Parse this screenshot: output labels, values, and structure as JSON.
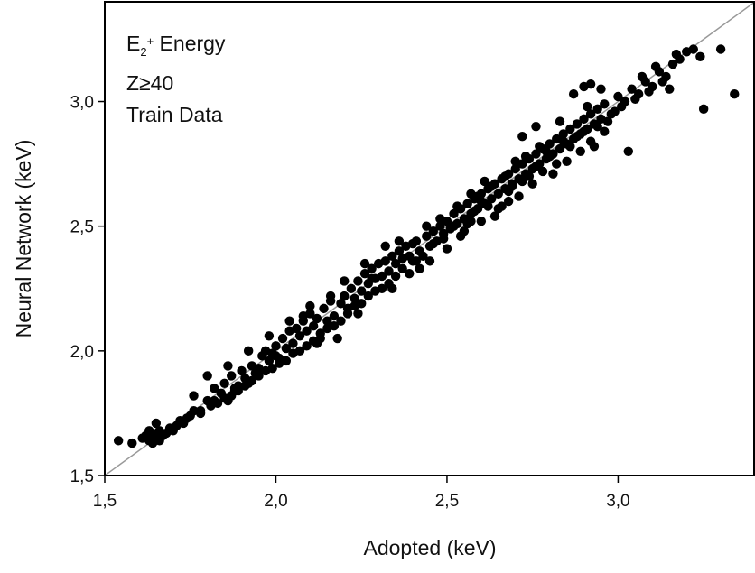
{
  "chart_data": {
    "type": "scatter",
    "title": "",
    "xlabel": "Adopted (keV)",
    "ylabel": "Neural Network (keV)",
    "xlim": [
      1.5,
      3.4
    ],
    "ylim": [
      1.5,
      3.4
    ],
    "x_ticks": [
      1.5,
      2.0,
      2.5,
      3.0
    ],
    "y_ticks": [
      1.5,
      2.0,
      2.5,
      3.0
    ],
    "x_tick_labels": [
      "1,5",
      "2,0",
      "2,5",
      "3,0"
    ],
    "y_tick_labels": [
      "1,5",
      "2,0",
      "2,5",
      "3,0"
    ],
    "grid": false,
    "reference_line": "y = x",
    "annotations": {
      "line1_main": "E",
      "line1_sub": "2",
      "line1_sup": "+",
      "line1_rest": " Energy",
      "line2": "Z≥40",
      "line3": "Train Data"
    },
    "colors": {
      "points": "#000000",
      "reference_line": "#999999",
      "frame": "#000000"
    },
    "points": [
      [
        1.54,
        1.64
      ],
      [
        1.58,
        1.63
      ],
      [
        1.61,
        1.65
      ],
      [
        1.62,
        1.66
      ],
      [
        1.63,
        1.64
      ],
      [
        1.64,
        1.67
      ],
      [
        1.65,
        1.65
      ],
      [
        1.66,
        1.68
      ],
      [
        1.67,
        1.66
      ],
      [
        1.68,
        1.67
      ],
      [
        1.69,
        1.69
      ],
      [
        1.65,
        1.71
      ],
      [
        1.63,
        1.68
      ],
      [
        1.72,
        1.72
      ],
      [
        1.74,
        1.73
      ],
      [
        1.76,
        1.82
      ],
      [
        1.78,
        1.76
      ],
      [
        1.8,
        1.8
      ],
      [
        1.82,
        1.85
      ],
      [
        1.84,
        1.83
      ],
      [
        1.85,
        1.87
      ],
      [
        1.86,
        1.8
      ],
      [
        1.87,
        1.9
      ],
      [
        1.88,
        1.84
      ],
      [
        1.89,
        1.86
      ],
      [
        1.9,
        1.92
      ],
      [
        1.91,
        1.89
      ],
      [
        1.92,
        1.87
      ],
      [
        1.93,
        1.94
      ],
      [
        1.95,
        1.93
      ],
      [
        1.96,
        1.98
      ],
      [
        1.97,
        2.0
      ],
      [
        1.98,
        1.96
      ],
      [
        1.99,
        1.99
      ],
      [
        2.0,
        2.02
      ],
      [
        2.01,
        1.97
      ],
      [
        2.02,
        2.05
      ],
      [
        2.03,
        2.01
      ],
      [
        2.04,
        2.08
      ],
      [
        2.05,
        2.03
      ],
      [
        2.06,
        2.09
      ],
      [
        2.07,
        2.06
      ],
      [
        2.08,
        2.12
      ],
      [
        2.09,
        2.08
      ],
      [
        2.1,
        2.15
      ],
      [
        2.11,
        2.1
      ],
      [
        2.12,
        2.13
      ],
      [
        2.13,
        2.07
      ],
      [
        2.14,
        2.17
      ],
      [
        2.15,
        2.12
      ],
      [
        2.16,
        2.2
      ],
      [
        2.17,
        2.14
      ],
      [
        2.18,
        2.05
      ],
      [
        2.19,
        2.19
      ],
      [
        2.2,
        2.22
      ],
      [
        2.21,
        2.17
      ],
      [
        2.22,
        2.25
      ],
      [
        2.23,
        2.21
      ],
      [
        2.24,
        2.28
      ],
      [
        2.25,
        2.24
      ],
      [
        2.26,
        2.31
      ],
      [
        2.27,
        2.27
      ],
      [
        2.28,
        2.33
      ],
      [
        2.29,
        2.29
      ],
      [
        2.3,
        2.35
      ],
      [
        2.31,
        2.3
      ],
      [
        2.32,
        2.36
      ],
      [
        2.33,
        2.32
      ],
      [
        2.34,
        2.38
      ],
      [
        2.35,
        2.35
      ],
      [
        2.36,
        2.4
      ],
      [
        2.37,
        2.37
      ],
      [
        2.38,
        2.42
      ],
      [
        2.39,
        2.38
      ],
      [
        2.4,
        2.36
      ],
      [
        2.41,
        2.44
      ],
      [
        2.42,
        2.4
      ],
      [
        2.44,
        2.46
      ],
      [
        2.45,
        2.42
      ],
      [
        2.46,
        2.48
      ],
      [
        2.47,
        2.44
      ],
      [
        2.48,
        2.5
      ],
      [
        2.49,
        2.47
      ],
      [
        2.5,
        2.52
      ],
      [
        2.51,
        2.49
      ],
      [
        2.52,
        2.55
      ],
      [
        2.53,
        2.51
      ],
      [
        2.54,
        2.57
      ],
      [
        2.55,
        2.53
      ],
      [
        2.56,
        2.59
      ],
      [
        2.57,
        2.55
      ],
      [
        2.58,
        2.61
      ],
      [
        2.59,
        2.57
      ],
      [
        2.6,
        2.63
      ],
      [
        2.61,
        2.59
      ],
      [
        2.62,
        2.65
      ],
      [
        2.63,
        2.61
      ],
      [
        2.64,
        2.67
      ],
      [
        2.65,
        2.63
      ],
      [
        2.66,
        2.69
      ],
      [
        2.67,
        2.65
      ],
      [
        2.68,
        2.71
      ],
      [
        2.69,
        2.67
      ],
      [
        2.7,
        2.73
      ],
      [
        2.71,
        2.69
      ],
      [
        2.72,
        2.75
      ],
      [
        2.73,
        2.71
      ],
      [
        2.74,
        2.77
      ],
      [
        2.75,
        2.73
      ],
      [
        2.76,
        2.79
      ],
      [
        2.77,
        2.75
      ],
      [
        2.78,
        2.81
      ],
      [
        2.79,
        2.77
      ],
      [
        2.8,
        2.83
      ],
      [
        2.81,
        2.79
      ],
      [
        2.82,
        2.85
      ],
      [
        2.83,
        2.81
      ],
      [
        2.84,
        2.87
      ],
      [
        2.85,
        2.83
      ],
      [
        2.86,
        2.89
      ],
      [
        2.87,
        2.85
      ],
      [
        2.88,
        2.91
      ],
      [
        2.89,
        2.87
      ],
      [
        2.9,
        2.93
      ],
      [
        2.91,
        2.89
      ],
      [
        2.92,
        2.95
      ],
      [
        2.93,
        2.91
      ],
      [
        2.94,
        2.97
      ],
      [
        2.95,
        2.93
      ],
      [
        2.96,
        2.99
      ],
      [
        2.98,
        2.95
      ],
      [
        3.0,
        3.02
      ],
      [
        3.02,
        3.0
      ],
      [
        3.04,
        3.05
      ],
      [
        3.06,
        3.03
      ],
      [
        3.08,
        3.08
      ],
      [
        3.1,
        3.06
      ],
      [
        3.12,
        3.12
      ],
      [
        3.14,
        3.1
      ],
      [
        3.16,
        3.15
      ],
      [
        3.18,
        3.17
      ],
      [
        3.2,
        3.2
      ],
      [
        3.22,
        3.21
      ],
      [
        3.24,
        3.18
      ],
      [
        3.3,
        3.21
      ],
      [
        3.25,
        2.97
      ],
      [
        3.34,
        3.03
      ],
      [
        3.03,
        2.8
      ],
      [
        2.92,
        3.07
      ],
      [
        2.9,
        3.06
      ],
      [
        2.95,
        3.05
      ],
      [
        2.87,
        3.03
      ],
      [
        2.93,
        2.82
      ],
      [
        2.82,
        2.75
      ],
      [
        2.8,
        2.78
      ],
      [
        2.62,
        2.58
      ],
      [
        2.64,
        2.54
      ],
      [
        2.6,
        2.6
      ],
      [
        2.57,
        2.52
      ],
      [
        2.55,
        2.48
      ],
      [
        2.59,
        2.62
      ],
      [
        2.63,
        2.66
      ],
      [
        2.68,
        2.64
      ],
      [
        2.72,
        2.68
      ],
      [
        2.74,
        2.7
      ],
      [
        2.76,
        2.74
      ],
      [
        2.78,
        2.72
      ],
      [
        2.71,
        2.62
      ],
      [
        2.69,
        2.66
      ],
      [
        2.66,
        2.58
      ],
      [
        2.67,
        2.7
      ],
      [
        2.7,
        2.76
      ],
      [
        2.73,
        2.78
      ],
      [
        2.77,
        2.82
      ],
      [
        2.79,
        2.8
      ],
      [
        2.84,
        2.84
      ],
      [
        2.86,
        2.82
      ],
      [
        2.88,
        2.86
      ],
      [
        2.9,
        2.88
      ],
      [
        2.94,
        2.9
      ],
      [
        2.97,
        2.92
      ],
      [
        2.99,
        2.96
      ],
      [
        3.01,
        2.98
      ],
      [
        3.05,
        3.01
      ],
      [
        3.09,
        3.04
      ],
      [
        3.13,
        3.08
      ],
      [
        3.15,
        3.05
      ],
      [
        2.56,
        2.51
      ],
      [
        2.58,
        2.56
      ],
      [
        2.52,
        2.5
      ],
      [
        2.49,
        2.45
      ],
      [
        2.46,
        2.43
      ],
      [
        2.43,
        2.38
      ],
      [
        2.41,
        2.36
      ],
      [
        2.37,
        2.33
      ],
      [
        2.35,
        2.3
      ],
      [
        2.33,
        2.27
      ],
      [
        2.31,
        2.25
      ],
      [
        2.29,
        2.24
      ],
      [
        2.27,
        2.22
      ],
      [
        2.25,
        2.19
      ],
      [
        2.23,
        2.18
      ],
      [
        2.21,
        2.15
      ],
      [
        2.19,
        2.12
      ],
      [
        2.17,
        2.1
      ],
      [
        2.15,
        2.09
      ],
      [
        2.13,
        2.05
      ],
      [
        2.11,
        2.04
      ],
      [
        2.09,
        2.02
      ],
      [
        2.07,
        2.0
      ],
      [
        2.05,
        1.99
      ],
      [
        2.03,
        1.96
      ],
      [
        2.01,
        1.95
      ],
      [
        1.99,
        1.93
      ],
      [
        1.97,
        1.92
      ],
      [
        1.95,
        1.9
      ],
      [
        1.93,
        1.88
      ],
      [
        1.91,
        1.86
      ],
      [
        1.89,
        1.84
      ],
      [
        1.87,
        1.82
      ],
      [
        1.85,
        1.81
      ],
      [
        1.83,
        1.79
      ],
      [
        1.81,
        1.78
      ],
      [
        1.78,
        1.75
      ],
      [
        1.75,
        1.74
      ],
      [
        1.73,
        1.71
      ],
      [
        1.71,
        1.7
      ],
      [
        1.7,
        1.68
      ],
      [
        1.66,
        1.64
      ],
      [
        1.64,
        1.63
      ],
      [
        2.2,
        2.28
      ],
      [
        2.26,
        2.35
      ],
      [
        2.32,
        2.42
      ],
      [
        2.36,
        2.44
      ],
      [
        2.4,
        2.43
      ],
      [
        2.28,
        2.29
      ],
      [
        2.44,
        2.5
      ],
      [
        2.48,
        2.53
      ],
      [
        2.1,
        2.18
      ],
      [
        2.04,
        2.12
      ],
      [
        1.98,
        2.06
      ],
      [
        1.92,
        2.0
      ],
      [
        1.86,
        1.94
      ],
      [
        1.8,
        1.9
      ],
      [
        2.16,
        2.22
      ],
      [
        2.34,
        2.25
      ],
      [
        2.42,
        2.33
      ],
      [
        2.5,
        2.41
      ],
      [
        2.54,
        2.46
      ],
      [
        2.6,
        2.52
      ],
      [
        2.65,
        2.57
      ],
      [
        2.68,
        2.6
      ],
      [
        2.75,
        2.67
      ],
      [
        2.81,
        2.71
      ],
      [
        2.85,
        2.76
      ],
      [
        2.89,
        2.8
      ],
      [
        2.92,
        2.84
      ],
      [
        2.96,
        2.88
      ],
      [
        3.07,
        3.1
      ],
      [
        3.11,
        3.14
      ],
      [
        3.17,
        3.19
      ],
      [
        2.72,
        2.86
      ],
      [
        2.76,
        2.9
      ],
      [
        2.83,
        2.92
      ],
      [
        2.91,
        2.98
      ],
      [
        2.61,
        2.68
      ],
      [
        2.57,
        2.63
      ],
      [
        2.53,
        2.58
      ],
      [
        2.45,
        2.36
      ],
      [
        2.39,
        2.31
      ],
      [
        2.24,
        2.15
      ],
      [
        2.12,
        2.03
      ],
      [
        2.08,
        2.14
      ],
      [
        2.0,
        1.98
      ],
      [
        1.94,
        1.91
      ],
      [
        1.88,
        1.85
      ],
      [
        1.82,
        1.8
      ],
      [
        1.76,
        1.76
      ]
    ]
  }
}
